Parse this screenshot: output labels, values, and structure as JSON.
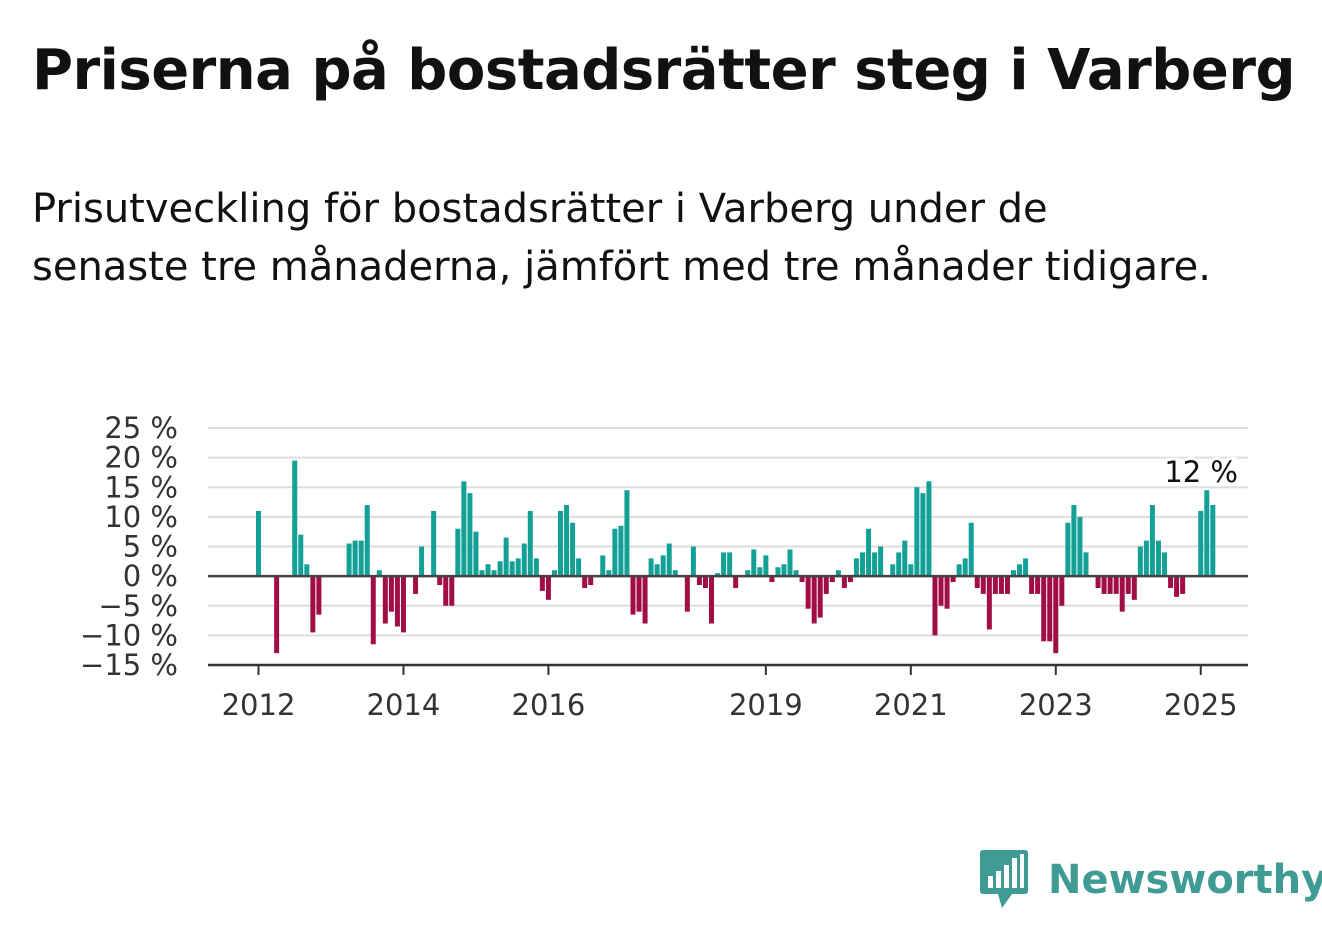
{
  "title": "Priserna på bostadsrätter steg i Varberg",
  "subtitle": "Prisutveckling för bostadsrätter i Varberg under de senaste tre månaderna, jämfört med tre månader tidigare.",
  "brand": {
    "name": "Newsworthy",
    "icon": "newsworthy-logo-icon",
    "color": "#3f9b93"
  },
  "colors": {
    "positive": "#13a096",
    "negative": "#a10d45",
    "grid": "#dddddd",
    "zero_line": "#444444"
  },
  "chart_data": {
    "type": "bar",
    "ylim": [
      -15,
      25
    ],
    "yticks": [
      -15,
      -10,
      -5,
      0,
      5,
      10,
      15,
      20,
      25
    ],
    "ytick_labels": [
      "−15 %",
      "−10 %",
      "−5 %",
      "0 %",
      "5 %",
      "10 %",
      "15 %",
      "20 %",
      "25 %"
    ],
    "x_start": "2012-01",
    "xticks": [
      "2012",
      "2014",
      "2016",
      "2019",
      "2021",
      "2023",
      "2025"
    ],
    "xtick_months": [
      "2012-01",
      "2014-01",
      "2016-01",
      "2019-01",
      "2021-01",
      "2023-01",
      "2025-01"
    ],
    "grid": true,
    "annotation": {
      "text": "12 %",
      "month": "2025-03"
    },
    "values": [
      11,
      null,
      null,
      -13,
      null,
      null,
      19.5,
      7,
      2,
      -9.5,
      -6.5,
      null,
      null,
      null,
      null,
      5.5,
      6,
      6,
      12,
      -11.5,
      1,
      -8,
      -6,
      -8.5,
      -9.5,
      null,
      -3,
      5,
      null,
      11,
      -1.5,
      -5,
      -5,
      8,
      16,
      14,
      7.5,
      1,
      2,
      1,
      2.5,
      6.5,
      2.5,
      3,
      5.5,
      11,
      3,
      -2.5,
      -4,
      1,
      11,
      12,
      9,
      3,
      -2,
      -1.5,
      null,
      3.5,
      1,
      8,
      8.5,
      14.5,
      -6.5,
      -6,
      -8,
      3,
      2,
      3.5,
      5.5,
      1,
      null,
      -6,
      5,
      -1.5,
      -2,
      -8,
      0.5,
      4,
      4,
      -2,
      null,
      1,
      4.5,
      1.5,
      3.5,
      -1,
      1.5,
      2,
      4.5,
      1,
      -1,
      -5.5,
      -8,
      -7,
      -3,
      -1,
      1,
      -2,
      -1,
      3,
      4,
      8,
      4,
      5,
      null,
      2,
      4,
      6,
      2,
      15,
      14,
      16,
      -10,
      -5,
      -5.5,
      -1,
      2,
      3,
      9,
      -2,
      -3,
      -9,
      -3,
      -3,
      -3,
      1,
      2,
      3,
      -3,
      -3,
      -11,
      -11,
      -13,
      -5,
      9,
      12,
      10,
      4,
      null,
      -2,
      -3,
      -3,
      -3,
      -6,
      -3,
      -4,
      5,
      6,
      12,
      6,
      4,
      -2,
      -3.5,
      -3,
      null,
      null,
      11,
      14.5,
      12
    ]
  }
}
